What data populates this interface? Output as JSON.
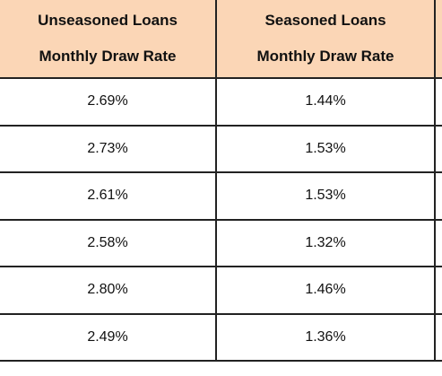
{
  "table": {
    "header": [
      [
        "Unseasoned Loans",
        "Monthly Draw Rate"
      ],
      [
        "Seasoned Loans",
        "Monthly Draw Rate"
      ]
    ],
    "rows": [
      [
        "2.69%",
        "1.44%"
      ],
      [
        "2.73%",
        "1.53%"
      ],
      [
        "2.61%",
        "1.53%"
      ],
      [
        "2.58%",
        "1.32%"
      ],
      [
        "2.80%",
        "1.46%"
      ],
      [
        "2.49%",
        "1.36%"
      ]
    ]
  }
}
